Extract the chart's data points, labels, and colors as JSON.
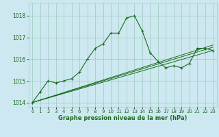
{
  "xlabel": "Graphe pression niveau de la mer (hPa)",
  "bg_color": "#cde8f0",
  "grid_color": "#99ccbb",
  "line_color": "#1a6b1a",
  "xlim": [
    -0.5,
    23.5
  ],
  "ylim": [
    1013.8,
    1018.6
  ],
  "yticks": [
    1014,
    1015,
    1016,
    1017,
    1018
  ],
  "xticks": [
    0,
    1,
    2,
    3,
    4,
    5,
    6,
    7,
    8,
    9,
    10,
    11,
    12,
    13,
    14,
    15,
    16,
    17,
    18,
    19,
    20,
    21,
    22,
    23
  ],
  "main_x": [
    0,
    1,
    2,
    3,
    4,
    5,
    6,
    7,
    8,
    9,
    10,
    11,
    12,
    13,
    14,
    15,
    16,
    17,
    18,
    19,
    20,
    21,
    22,
    23
  ],
  "main_y": [
    1014.0,
    1014.5,
    1015.0,
    1014.9,
    1015.0,
    1015.1,
    1015.4,
    1016.0,
    1016.5,
    1016.7,
    1017.2,
    1017.2,
    1017.9,
    1018.0,
    1017.3,
    1016.3,
    1015.9,
    1015.6,
    1015.7,
    1015.6,
    1015.8,
    1016.5,
    1016.5,
    1016.4
  ],
  "trend_lines": [
    {
      "x": [
        0,
        23
      ],
      "y": [
        1014.0,
        1016.4
      ]
    },
    {
      "x": [
        0,
        23
      ],
      "y": [
        1014.0,
        1016.55
      ]
    },
    {
      "x": [
        0,
        23
      ],
      "y": [
        1014.0,
        1016.65
      ]
    }
  ]
}
